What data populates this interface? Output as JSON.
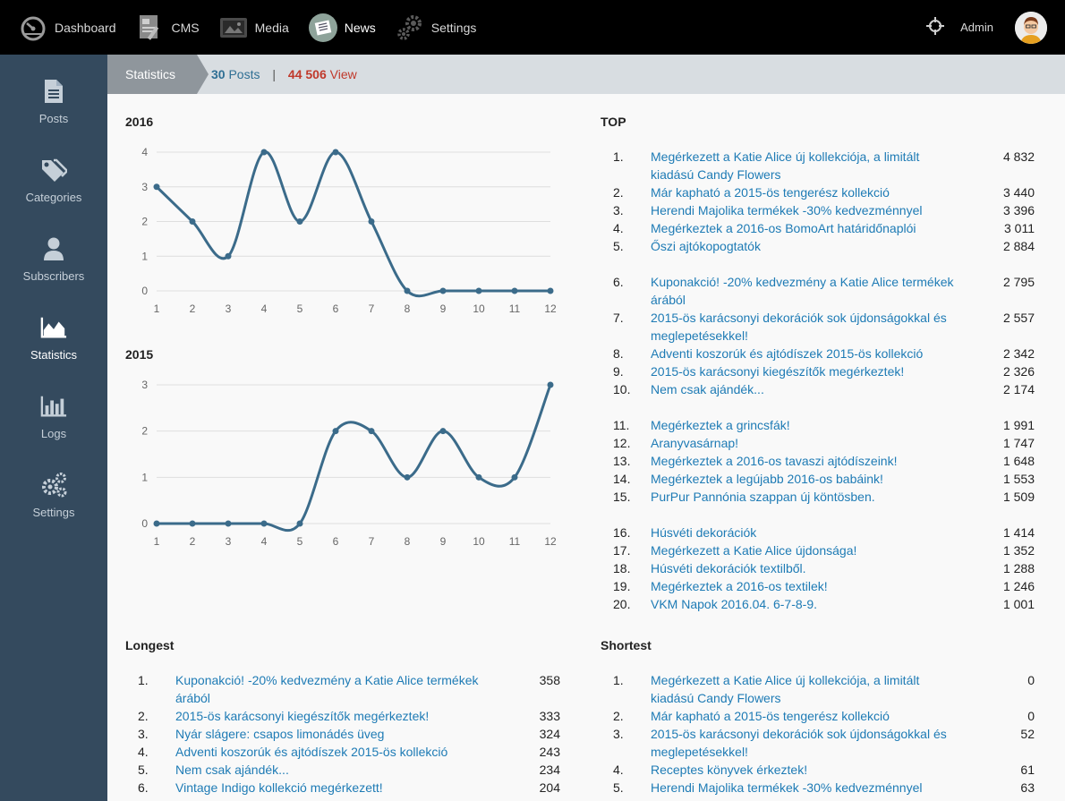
{
  "topnav": {
    "items": [
      {
        "label": "Dashboard",
        "icon": "speedometer-icon"
      },
      {
        "label": "CMS",
        "icon": "cms-icon"
      },
      {
        "label": "Media",
        "icon": "media-icon"
      },
      {
        "label": "News",
        "icon": "newspaper-icon",
        "active": true
      },
      {
        "label": "Settings",
        "icon": "gears-icon"
      }
    ],
    "user": "Admin"
  },
  "sidebar": {
    "items": [
      {
        "label": "Posts",
        "icon": "document-icon"
      },
      {
        "label": "Categories",
        "icon": "tags-icon"
      },
      {
        "label": "Subscribers",
        "icon": "user-icon"
      },
      {
        "label": "Statistics",
        "icon": "area-chart-icon",
        "active": true
      },
      {
        "label": "Logs",
        "icon": "bar-chart-icon"
      },
      {
        "label": "Settings",
        "icon": "gears-icon"
      }
    ]
  },
  "header": {
    "crumb": "Statistics",
    "posts_count": "30",
    "posts_label": "Posts",
    "separator": "|",
    "views_count": "44 506",
    "views_label": "View"
  },
  "colors": {
    "link": "#1e7bb5",
    "line": "#3b6b8a",
    "sidebar": "#344a5e",
    "views": "#c0392b",
    "posts": "#2f6f94"
  },
  "chart_data": [
    {
      "type": "line",
      "title": "2016",
      "x": [
        "1",
        "2",
        "3",
        "4",
        "5",
        "6",
        "7",
        "8",
        "9",
        "10",
        "11",
        "12"
      ],
      "values": [
        3,
        2,
        1,
        4,
        2,
        4,
        2,
        0,
        0,
        0,
        0,
        0
      ],
      "yticks": [
        "0",
        "1",
        "2",
        "3",
        "4"
      ],
      "ylim": [
        0,
        4
      ],
      "grid": true
    },
    {
      "type": "line",
      "title": "2015",
      "x": [
        "1",
        "2",
        "3",
        "4",
        "5",
        "6",
        "7",
        "8",
        "9",
        "10",
        "11",
        "12"
      ],
      "values": [
        0,
        0,
        0,
        0,
        0,
        2,
        2,
        1,
        2,
        1,
        1,
        3
      ],
      "yticks": [
        "0",
        "1",
        "2",
        "3"
      ],
      "ylim": [
        0,
        3
      ],
      "grid": true
    }
  ],
  "top": {
    "title": "TOP",
    "rows": [
      {
        "num": "1.",
        "lines": [
          "Megérkezett a Katie Alice új kollekciója, a limitált",
          "kiadású Candy Flowers"
        ],
        "val": "4 832"
      },
      {
        "num": "2.",
        "lines": [
          "Már kapható a 2015-ös tengerész kollekció"
        ],
        "val": "3 440"
      },
      {
        "num": "3.",
        "lines": [
          "Herendi Majolika termékek -30% kedvezménnyel"
        ],
        "val": "3 396"
      },
      {
        "num": "4.",
        "lines": [
          "Megérkeztek a 2016-os BomoArt határidőnaplói"
        ],
        "val": "3 011"
      },
      {
        "num": "5.",
        "lines": [
          "Őszi ajtókopogtatók"
        ],
        "val": "2 884",
        "gapAfter": true
      },
      {
        "num": "6.",
        "lines": [
          "Kuponakció! -20% kedvezmény a Katie Alice termékek",
          "árából"
        ],
        "val": "2 795"
      },
      {
        "num": "7.",
        "lines": [
          "2015-ös karácsonyi dekorációk sok újdonságokkal és",
          "meglepetésekkel!"
        ],
        "val": "2 557"
      },
      {
        "num": "8.",
        "lines": [
          "Adventi koszorúk és ajtódíszek 2015-ös kollekció"
        ],
        "val": "2 342"
      },
      {
        "num": "9.",
        "lines": [
          "2015-ös karácsonyi kiegészítők megérkeztek!"
        ],
        "val": "2 326"
      },
      {
        "num": "10.",
        "lines": [
          "Nem csak ajándék..."
        ],
        "val": "2 174",
        "gapAfter": true
      },
      {
        "num": "11.",
        "lines": [
          "Megérkeztek a grincsfák!"
        ],
        "val": "1 991"
      },
      {
        "num": "12.",
        "lines": [
          "Aranyvasárnap!"
        ],
        "val": "1 747"
      },
      {
        "num": "13.",
        "lines": [
          "Megérkeztek a 2016-os tavaszi ajtódíszeink!"
        ],
        "val": "1 648"
      },
      {
        "num": "14.",
        "lines": [
          "Megérkeztek a legújabb 2016-os babáink!"
        ],
        "val": "1 553"
      },
      {
        "num": "15.",
        "lines": [
          "PurPur Pannónia szappan új köntösben."
        ],
        "val": "1 509",
        "gapAfter": true
      },
      {
        "num": "16.",
        "lines": [
          "Húsvéti dekorációk"
        ],
        "val": "1 414"
      },
      {
        "num": "17.",
        "lines": [
          "Megérkezett a Katie Alice újdonsága!"
        ],
        "val": "1 352"
      },
      {
        "num": "18.",
        "lines": [
          "Húsvéti dekorációk textilből."
        ],
        "val": "1 288"
      },
      {
        "num": "19.",
        "lines": [
          "Megérkeztek a 2016-os textilek!"
        ],
        "val": "1 246"
      },
      {
        "num": "20.",
        "lines": [
          "VKM Napok 2016.04. 6-7-8-9."
        ],
        "val": "1 001"
      }
    ]
  },
  "longest": {
    "title": "Longest",
    "rows": [
      {
        "num": "1.",
        "lines": [
          "Kuponakció! -20% kedvezmény a Katie Alice termékek",
          "árából"
        ],
        "val": "358"
      },
      {
        "num": "2.",
        "lines": [
          "2015-ös karácsonyi kiegészítők megérkeztek!"
        ],
        "val": "333"
      },
      {
        "num": "3.",
        "lines": [
          "Nyár slágere: csapos limonádés üveg"
        ],
        "val": "324"
      },
      {
        "num": "4.",
        "lines": [
          "Adventi koszorúk és ajtódíszek 2015-ös kollekció"
        ],
        "val": "243"
      },
      {
        "num": "5.",
        "lines": [
          "Nem csak ajándék..."
        ],
        "val": "234"
      },
      {
        "num": "6.",
        "lines": [
          "Vintage Indigo kollekció megérkezett!"
        ],
        "val": "204"
      }
    ]
  },
  "shortest": {
    "title": "Shortest",
    "rows": [
      {
        "num": "1.",
        "lines": [
          "Megérkezett a Katie Alice új kollekciója, a limitált",
          "kiadású Candy Flowers"
        ],
        "val": "0"
      },
      {
        "num": "2.",
        "lines": [
          "Már kapható a 2015-ös tengerész kollekció"
        ],
        "val": "0"
      },
      {
        "num": "3.",
        "lines": [
          "2015-ös karácsonyi dekorációk sok újdonságokkal és",
          "meglepetésekkel!"
        ],
        "val": "52"
      },
      {
        "num": "4.",
        "lines": [
          "Receptes könyvek érkeztek!"
        ],
        "val": "61"
      },
      {
        "num": "5.",
        "lines": [
          "Herendi Majolika termékek -30% kedvezménnyel"
        ],
        "val": "63"
      }
    ]
  }
}
